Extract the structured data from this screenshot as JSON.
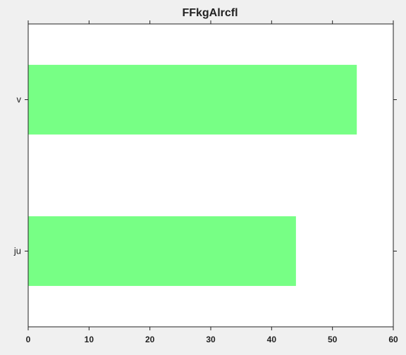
{
  "chart_data": {
    "type": "bar",
    "orientation": "horizontal",
    "title": "FFkgAlrcfl",
    "xlabel": "",
    "ylabel": "",
    "categories": [
      "ju",
      "v"
    ],
    "values": [
      44,
      54
    ],
    "xlim": [
      0,
      60
    ],
    "xticks": [
      0,
      10,
      20,
      30,
      40,
      50,
      60
    ],
    "grid": false,
    "legend": "none",
    "colors": {
      "bar": "#77ff85",
      "plot_background": "#ffffff",
      "figure_background": "#f0f0f0",
      "axis": "#222222"
    }
  }
}
